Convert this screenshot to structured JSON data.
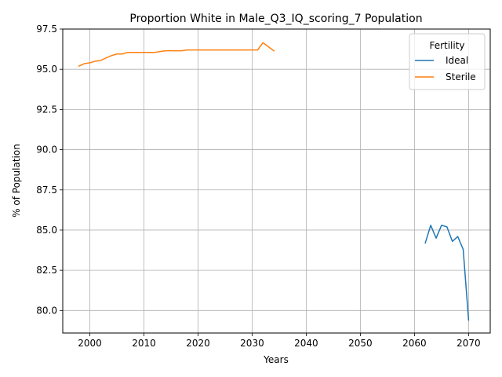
{
  "chart_data": {
    "type": "line",
    "title": "Proportion White in Male_Q3_IQ_scoring_7 Population",
    "xlabel": "Years",
    "ylabel": "% of Population",
    "xlim": [
      1995,
      2074
    ],
    "ylim": [
      78.6,
      97.5
    ],
    "xticks": [
      2000,
      2010,
      2020,
      2030,
      2040,
      2050,
      2060,
      2070
    ],
    "yticks": [
      80.0,
      82.5,
      85.0,
      87.5,
      90.0,
      92.5,
      95.0,
      97.5
    ],
    "ytick_labels": [
      "80.0",
      "82.5",
      "85.0",
      "87.5",
      "90.0",
      "92.5",
      "95.0",
      "97.5"
    ],
    "grid": true,
    "legend": {
      "title": "Fertility",
      "position": "top-right"
    },
    "series": [
      {
        "name": "Ideal",
        "color": "#1f77b4",
        "x": [
          2062,
          2063,
          2064,
          2065,
          2066,
          2067,
          2068,
          2069,
          2070
        ],
        "y": [
          84.2,
          85.3,
          84.5,
          85.3,
          85.2,
          84.3,
          84.6,
          83.8,
          79.4
        ]
      },
      {
        "name": "Sterile",
        "color": "#ff7f0e",
        "x": [
          1998,
          1999,
          2000,
          2001,
          2002,
          2003,
          2004,
          2005,
          2006,
          2007,
          2008,
          2009,
          2010,
          2011,
          2012,
          2013,
          2014,
          2015,
          2016,
          2017,
          2018,
          2019,
          2020,
          2021,
          2022,
          2023,
          2024,
          2025,
          2026,
          2027,
          2028,
          2029,
          2030,
          2031,
          2032,
          2033,
          2034
        ],
        "y": [
          95.2,
          95.35,
          95.4,
          95.5,
          95.55,
          95.7,
          95.85,
          95.95,
          95.95,
          96.05,
          96.05,
          96.05,
          96.05,
          96.05,
          96.05,
          96.1,
          96.15,
          96.15,
          96.15,
          96.15,
          96.2,
          96.2,
          96.2,
          96.2,
          96.2,
          96.2,
          96.2,
          96.2,
          96.2,
          96.2,
          96.2,
          96.2,
          96.2,
          96.2,
          96.65,
          96.4,
          96.15
        ]
      }
    ]
  }
}
